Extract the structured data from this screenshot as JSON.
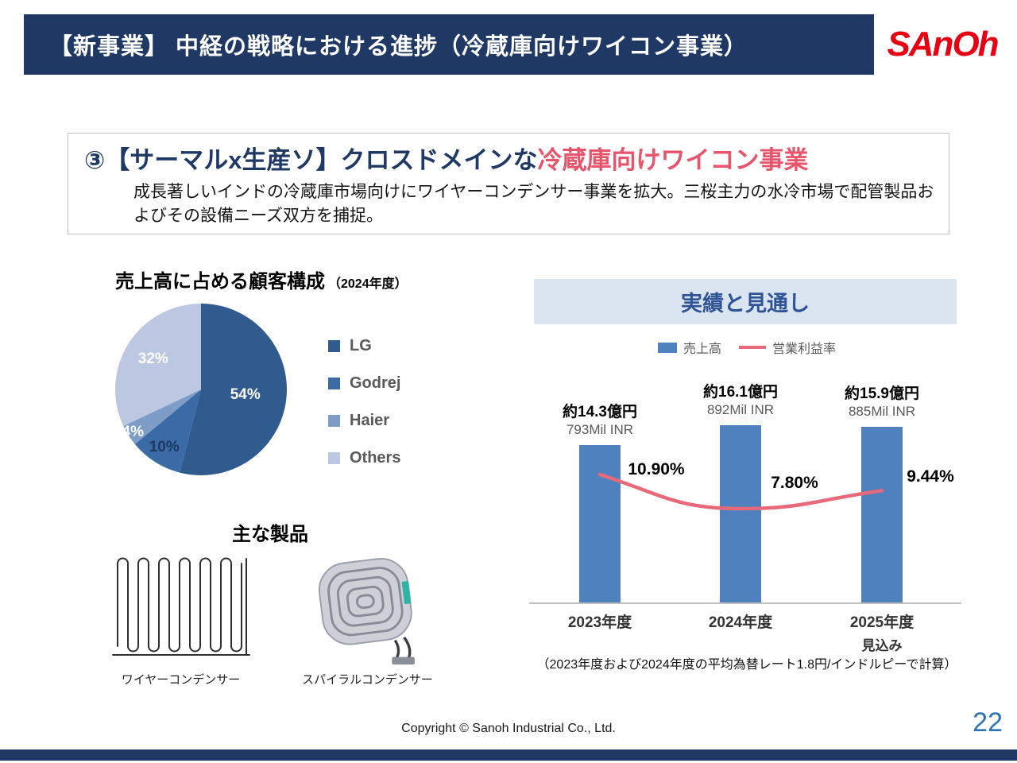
{
  "colors": {
    "navy": "#1F3864",
    "accent": "#E8546B",
    "bar_blue": "#4E81BD",
    "line_pink": "#E8697A",
    "band_bg": "#DBE5F1",
    "band_text": "#2F5496",
    "page_blue": "#2E74B5",
    "logo_red": "#E60012"
  },
  "header": {
    "title": "【新事業】 中経の戦略における進捗（冷蔵庫向けワイコン事業）",
    "logo_text": "SAnOh"
  },
  "lead": {
    "title_main": "③【サーマルx生産ソ】クロスドメインな",
    "title_accent": "冷蔵庫向けワイコン事業",
    "body": "成長著しいインドの冷蔵庫市場向けにワイヤーコンデンサー事業を拡大。三桜主力の水冷市場で配管製品およびその設備ニーズ双方を捕捉。"
  },
  "chart_data": [
    {
      "type": "pie",
      "title_main": "売上高に占める顧客構成",
      "title_sub": "（2024年度）",
      "labels": [
        "LG",
        "Godrej",
        "Haier",
        "Others"
      ],
      "values": [
        54,
        10,
        4,
        32
      ],
      "unit": "%",
      "value_labels": [
        "54%",
        "10%",
        "4%",
        "32%"
      ],
      "colors": [
        "#2F5B8F",
        "#3A6BA5",
        "#7D9CC6",
        "#BCC7E2"
      ],
      "legend_position": "right"
    },
    {
      "type": "bar-line-combo",
      "title": "実績と見通し",
      "categories": [
        "2023年度",
        "2024年度",
        "2025年度"
      ],
      "category_sub": [
        "",
        "",
        "見込み"
      ],
      "series": [
        {
          "name": "売上高",
          "type": "bar",
          "color": "#4E81BD",
          "values": [
            793,
            892,
            885
          ],
          "unit": "Mil INR",
          "value_labels": [
            "793Mil INR",
            "892Mil INR",
            "885Mil INR"
          ],
          "value_labels_jpy": [
            "約14.3億円",
            "約16.1億円",
            "約15.9億円"
          ]
        },
        {
          "name": "営業利益率",
          "type": "line",
          "color": "#E8697A",
          "values": [
            10.9,
            7.8,
            9.44
          ],
          "unit": "%",
          "value_labels": [
            "10.90%",
            "7.80%",
            "9.44%"
          ]
        }
      ],
      "note": "（2023年度および2024年度の平均為替レート1.8円/インドルピーで計算）"
    }
  ],
  "products": {
    "title": "主な製品",
    "items": [
      {
        "label": "ワイヤーコンデンサー"
      },
      {
        "label": "スパイラルコンデンサー"
      }
    ]
  },
  "footer": {
    "copyright": "Copyright © Sanoh Industrial Co., Ltd.",
    "page": "22"
  }
}
